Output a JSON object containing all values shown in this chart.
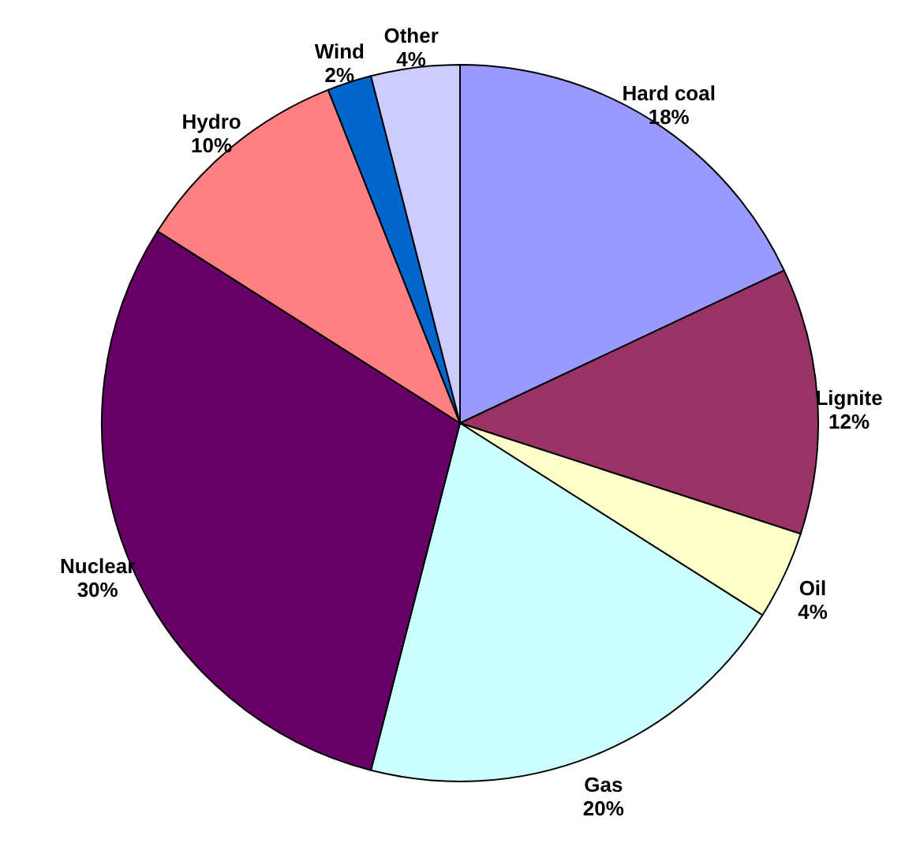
{
  "chart_data": {
    "type": "pie",
    "categories": [
      "Hard coal",
      "Lignite",
      "Oil",
      "Gas",
      "Nuclear",
      "Hydro",
      "Wind",
      "Other"
    ],
    "values": [
      18,
      12,
      4,
      20,
      30,
      10,
      2,
      4
    ],
    "value_labels": [
      "18%",
      "12%",
      "4%",
      "20%",
      "30%",
      "10%",
      "2%",
      "4%"
    ],
    "colors": [
      "#9999ff",
      "#993366",
      "#ffffcc",
      "#ccffff",
      "#660066",
      "#ff8080",
      "#0066cc",
      "#ccccff"
    ]
  }
}
